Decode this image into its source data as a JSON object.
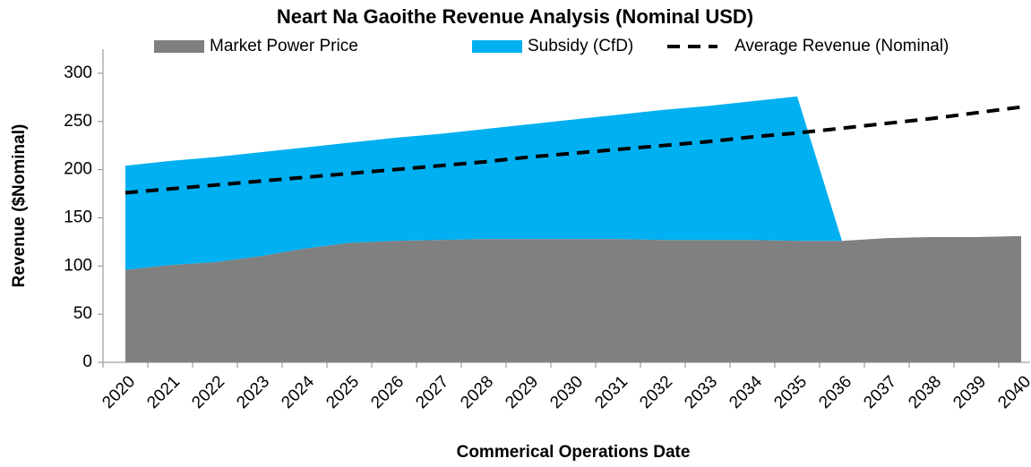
{
  "chart_data": {
    "type": "area",
    "stacked": true,
    "title": "Neart Na Gaoithe Revenue Analysis (Nominal USD)",
    "x_label": "Commerical Operations Date",
    "y_label": "Revenue ($Nominal)",
    "categories": [
      "2020",
      "2021",
      "2022",
      "2023",
      "2024",
      "2025",
      "2026",
      "2027",
      "2028",
      "2029",
      "2030",
      "2031",
      "2032",
      "2033",
      "2034",
      "2035",
      "2036",
      "2037",
      "2038",
      "2039",
      "2040"
    ],
    "series": [
      {
        "name": "Market Power Price",
        "color": "#808080",
        "type": "area",
        "values": [
          96,
          101,
          104,
          110,
          118,
          124,
          126,
          127,
          128,
          128,
          128,
          128,
          127,
          127,
          127,
          126,
          126,
          129,
          130,
          130,
          131
        ]
      },
      {
        "name": "Subsidy (CfD)",
        "color": "#00b0f0",
        "type": "area",
        "values": [
          108,
          108,
          109,
          108,
          105,
          104,
          107,
          110,
          114,
          119,
          124,
          129,
          135,
          139,
          144,
          150,
          0,
          0,
          0,
          0,
          0
        ]
      },
      {
        "name": "Average Revenue (Nominal)",
        "color": "#000000",
        "type": "line",
        "dashed": true,
        "values": [
          176,
          180,
          184,
          188,
          192,
          196,
          200,
          204,
          208,
          213,
          217,
          221,
          225,
          229,
          234,
          238,
          243,
          248,
          253,
          259,
          265
        ]
      }
    ],
    "ylim": [
      0,
      325
    ],
    "yticks": [
      0,
      50,
      100,
      150,
      200,
      250,
      300
    ],
    "grid": false,
    "legend": "top"
  }
}
